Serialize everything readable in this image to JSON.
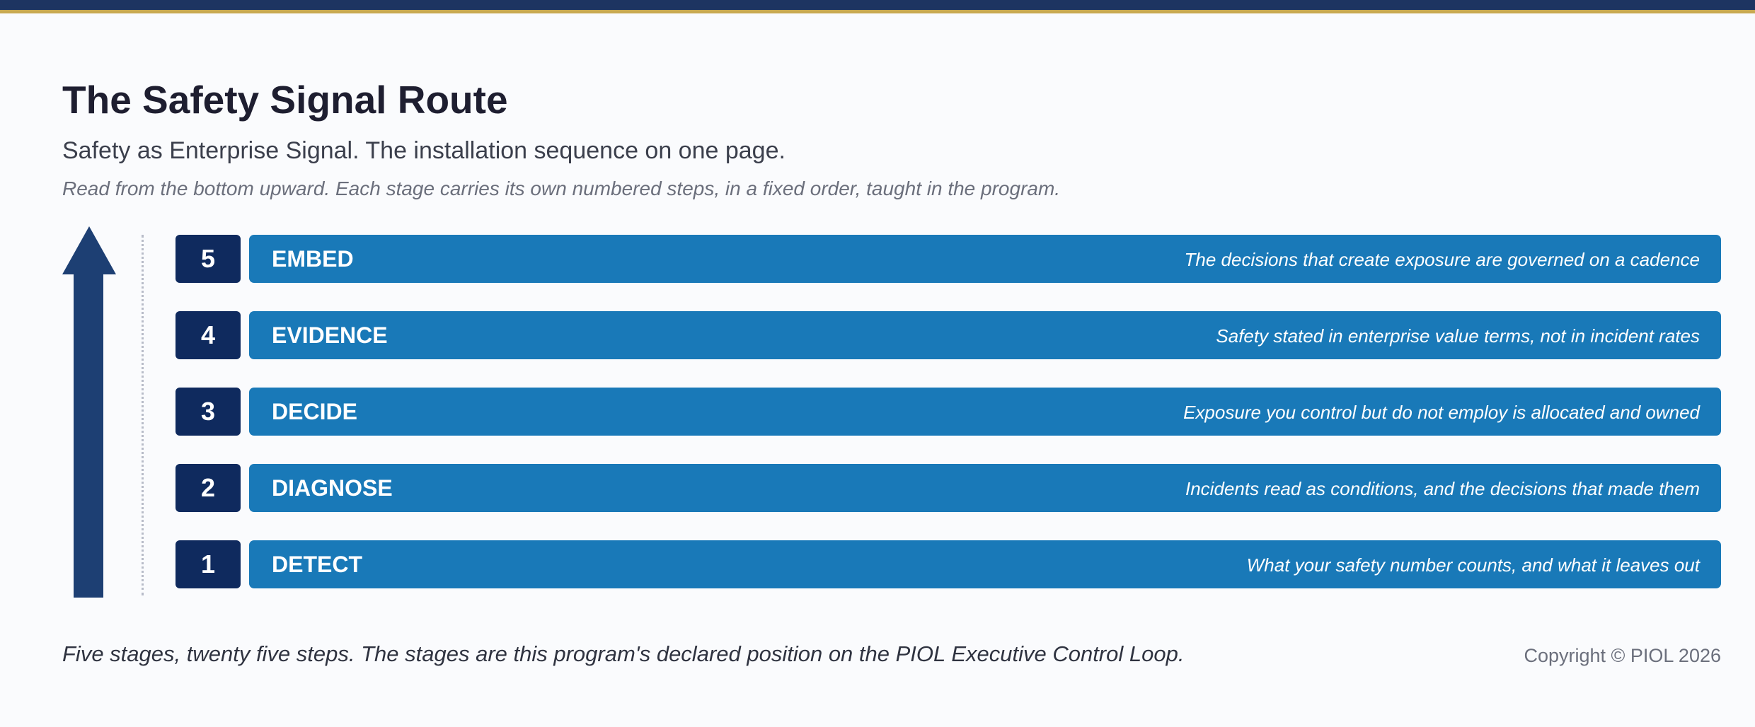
{
  "header": {
    "title": "The Safety Signal Route",
    "subtitle": "Safety as Enterprise Signal. The installation sequence on one page.",
    "instruction": "Read from the bottom upward. Each stage carries its own numbered steps, in a fixed order, taught in the program."
  },
  "stages": [
    {
      "number": "5",
      "name": "EMBED",
      "description": "The decisions that create exposure are governed on a cadence"
    },
    {
      "number": "4",
      "name": "EVIDENCE",
      "description": "Safety stated in enterprise value terms, not in incident rates"
    },
    {
      "number": "3",
      "name": "DECIDE",
      "description": "Exposure you control but do not employ is allocated and owned"
    },
    {
      "number": "2",
      "name": "DIAGNOSE",
      "description": "Incidents read as conditions, and the decisions that made them"
    },
    {
      "number": "1",
      "name": "DETECT",
      "description": "What your safety number counts, and what it leaves out"
    }
  ],
  "footer": {
    "note": "Five stages, twenty five steps. The stages are this program's declared position on the PIOL Executive Control Loop.",
    "copyright": "Copyright © PIOL 2026"
  },
  "colors": {
    "top_bar": "#1d3461",
    "top_bar_accent": "#c8a951",
    "arrow": "#1d3f73",
    "number_box": "#0f2a5e",
    "stage_bar": "#1979b8"
  },
  "icons": {
    "direction": "arrow-up-icon"
  }
}
